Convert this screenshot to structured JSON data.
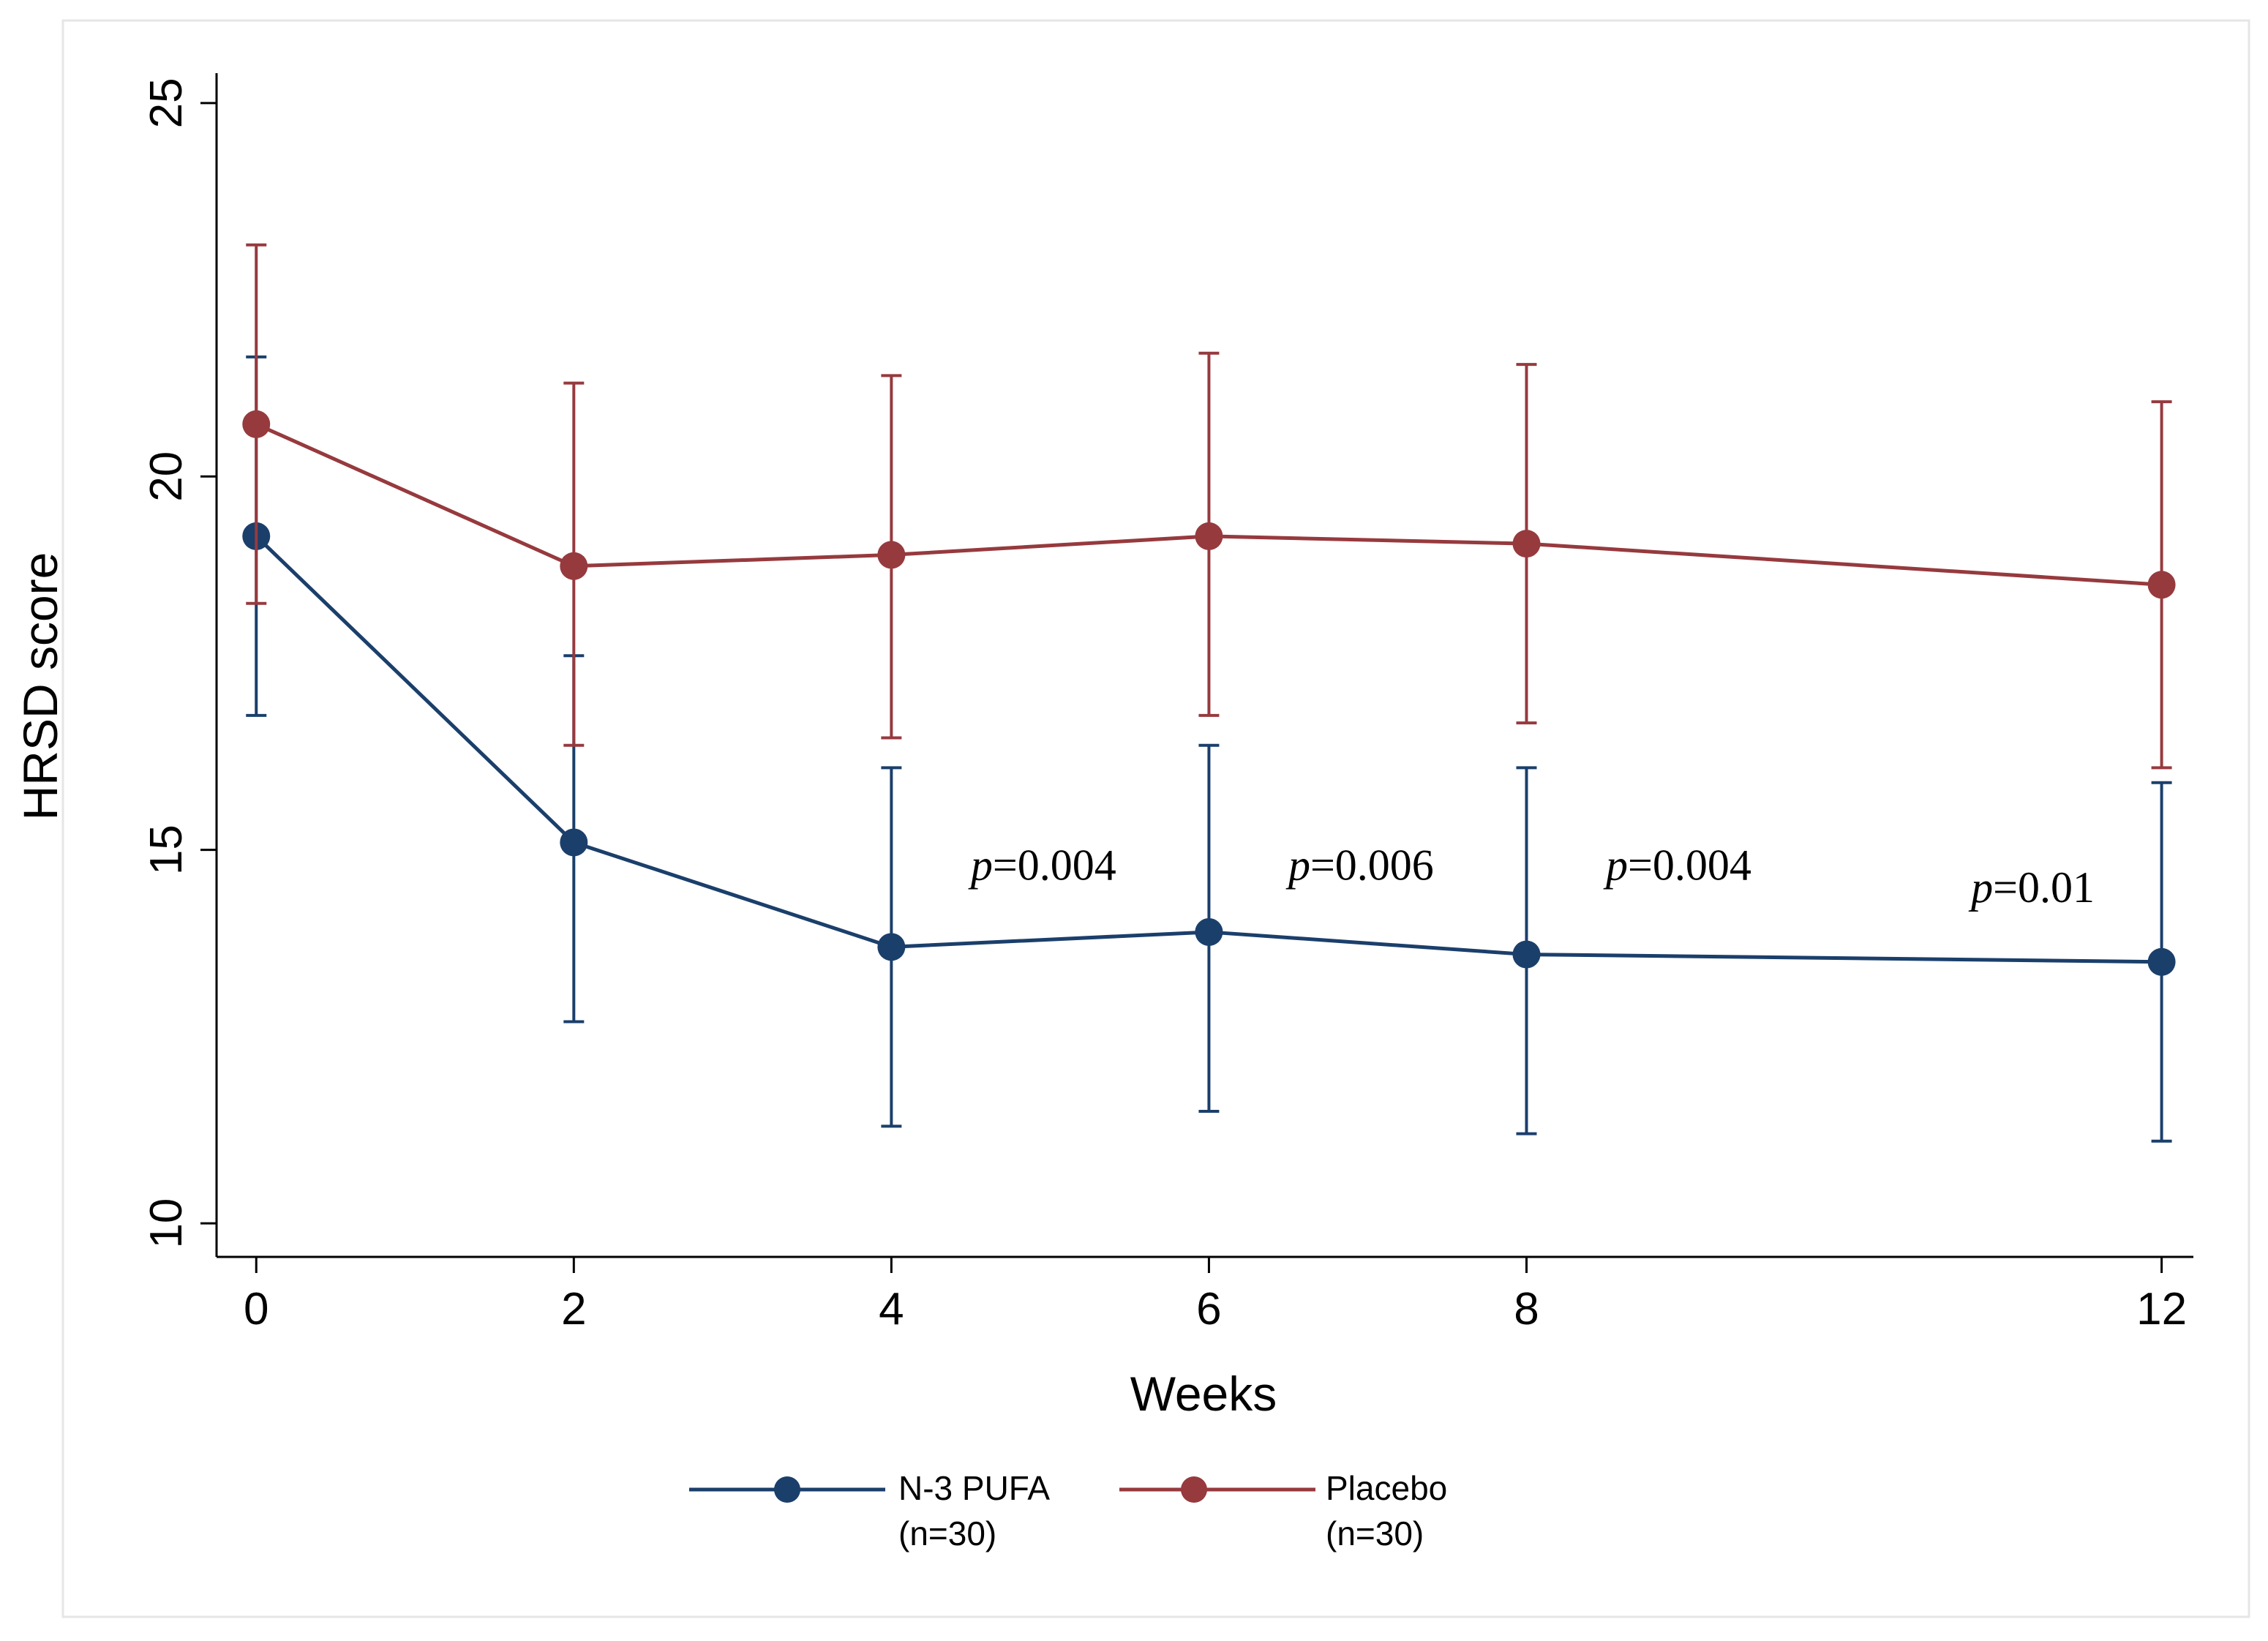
{
  "chart_data": {
    "type": "line",
    "title": "",
    "xlabel": "Weeks",
    "ylabel": "HRSD score",
    "x": [
      0,
      2,
      4,
      6,
      8,
      12
    ],
    "x_tick_labels": [
      "0",
      "2",
      "4",
      "6",
      "8",
      "12"
    ],
    "xlim": [
      -0.25,
      12.2
    ],
    "ylim": [
      9.55,
      25.4
    ],
    "y_ticks": [
      10,
      15,
      20,
      25
    ],
    "y_tick_labels": [
      "10",
      "15",
      "20",
      "25"
    ],
    "grid": false,
    "legend_position": "bottom",
    "series": [
      {
        "name": "N-3 PUFA",
        "legend_label_line1": "N-3 PUFA",
        "legend_label_line2": "(n=30)",
        "color": "#1b3f6b",
        "values": [
          19.2,
          15.1,
          13.7,
          13.9,
          13.6,
          13.5
        ],
        "error_low": [
          16.8,
          12.7,
          11.3,
          11.5,
          11.2,
          11.1
        ],
        "error_high": [
          21.6,
          17.6,
          16.1,
          16.4,
          16.1,
          15.9
        ]
      },
      {
        "name": "Placebo",
        "legend_label_line1": "Placebo",
        "legend_label_line2": "(n=30)",
        "color": "#963a3e",
        "values": [
          20.7,
          18.8,
          18.95,
          19.2,
          19.1,
          18.55
        ],
        "error_low": [
          18.3,
          16.4,
          16.5,
          16.8,
          16.7,
          16.1
        ],
        "error_high": [
          23.1,
          21.25,
          21.35,
          21.65,
          21.5,
          21.0
        ]
      }
    ],
    "annotations": [
      {
        "x": 4.5,
        "y": 14.6,
        "italic": "p",
        "text": "=0.004"
      },
      {
        "x": 6.5,
        "y": 14.6,
        "italic": "p",
        "text": "=0.006"
      },
      {
        "x": 8.5,
        "y": 14.6,
        "italic": "p",
        "text": "=0.004"
      },
      {
        "x": 10.8,
        "y": 14.3,
        "italic": "p",
        "text": "=0.01"
      }
    ]
  }
}
